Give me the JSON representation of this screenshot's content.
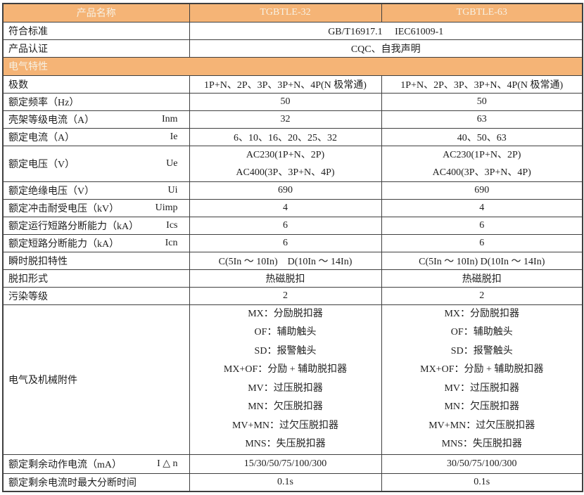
{
  "colors": {
    "accent_orange": "#f5b476",
    "band_text": "#f6f1e4",
    "grid_border": "#3f3f3f",
    "body_text": "#1e1e1e"
  },
  "header": {
    "name_label": "产品名称",
    "model_a": "TGBTLE-32",
    "model_b": "TGBTLE-63"
  },
  "rows": {
    "standards": {
      "label": "符合标准",
      "value": "GB/T16917.1　 IEC61009-1"
    },
    "certification": {
      "label": "产品认证",
      "value": "CQC、自我声明"
    },
    "section_electrical": {
      "title": "电气特性"
    },
    "poles": {
      "label": "极数",
      "a": "1P+N、2P、3P、3P+N、4P(N 极常通)",
      "b": "1P+N、2P、3P、3P+N、4P(N 极常通)"
    },
    "frequency": {
      "label": "额定频率（Hz）",
      "a": "50",
      "b": "50"
    },
    "frame_current": {
      "label": "壳架等级电流（A）",
      "symbol": "Inm",
      "a": "32",
      "b": "63"
    },
    "rated_current": {
      "label": "额定电流（A）",
      "symbol": "Ie",
      "a": "6、10、16、20、25、32",
      "b": "40、50、63"
    },
    "rated_voltage": {
      "label": "额定电压（V）",
      "symbol": "Ue",
      "a": "AC230(1P+N、2P)\nAC400(3P、3P+N、4P)",
      "b": "AC230(1P+N、2P)\nAC400(3P、3P+N、4P)"
    },
    "insulation_voltage": {
      "label": "额定绝缘电压（V）",
      "symbol": "Ui",
      "a": "690",
      "b": "690"
    },
    "impulse_voltage": {
      "label": "额定冲击耐受电压（kV）",
      "symbol": "Uimp",
      "a": "4",
      "b": "4"
    },
    "ics": {
      "label": "额定运行短路分断能力（kA）",
      "symbol": "Ics",
      "a": "6",
      "b": "6"
    },
    "icn": {
      "label": "额定短路分断能力（kA）",
      "symbol": "Icn",
      "a": "6",
      "b": "6"
    },
    "instantaneous_trip": {
      "label": "瞬时脱扣特性",
      "a": "C(5In ～ 10In)　D(10In ～ 14In)",
      "b": "C(5In ～ 10In) D(10In ～ 14In)"
    },
    "trip_type": {
      "label": "脱扣形式",
      "a": "热磁脱扣",
      "b": "热磁脱扣"
    },
    "pollution": {
      "label": "污染等级",
      "a": "2",
      "b": "2"
    },
    "accessories": {
      "label": "电气及机械附件",
      "a": "MX：分励脱扣器\nOF：辅助触头\nSD：报警触头\nMX+OF：分励 + 辅助脱扣器\nMV：过压脱扣器\nMN：欠压脱扣器\nMV+MN：过欠压脱扣器\nMNS：失压脱扣器",
      "b": "MX：分励脱扣器\nOF：辅助触头\nSD：报警触头\nMX+OF：分励 + 辅助脱扣器\nMV：过压脱扣器\nMN：欠压脱扣器\nMV+MN：过欠压脱扣器\nMNS：失压脱扣器"
    },
    "residual_current": {
      "label": "额定剩余动作电流（mA）",
      "symbol": "I △ n",
      "a": "15/30/50/75/100/300",
      "b": "30/50/75/100/300"
    },
    "breaking_time": {
      "label": "额定剩余电流时最大分断时间",
      "a": "0.1s",
      "b": "0.1s"
    }
  }
}
